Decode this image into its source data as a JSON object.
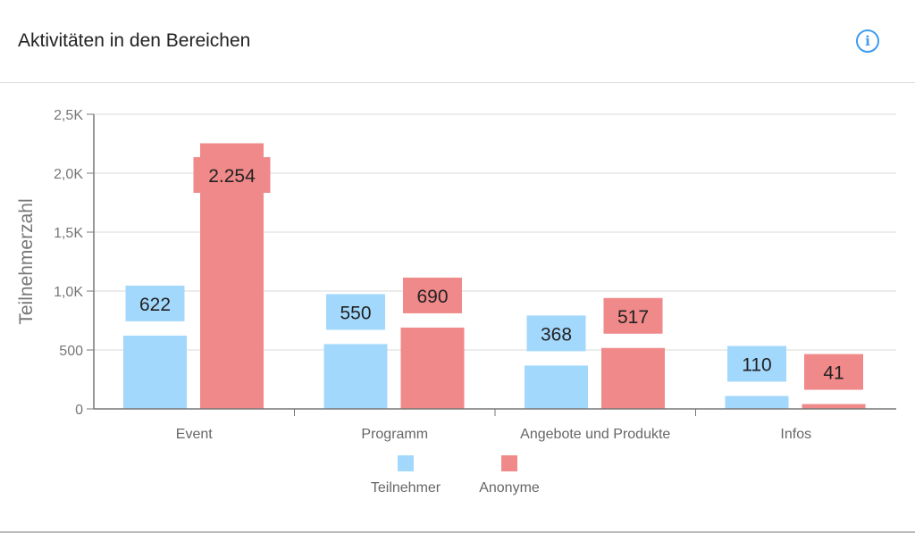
{
  "header": {
    "title": "Aktivitäten in den Bereichen",
    "info_icon": "info-icon"
  },
  "chart_data": {
    "type": "bar",
    "title": "Aktivitäten in den Bereichen",
    "xlabel": "",
    "ylabel": "Teilnehmerzahl",
    "ylim": [
      0,
      2500
    ],
    "yticks": [
      0,
      500,
      1000,
      1500,
      2000,
      2500
    ],
    "ytick_labels": [
      "0",
      "500",
      "1,0K",
      "1,5K",
      "2,0K",
      "2,5K"
    ],
    "categories": [
      "Event",
      "Programm",
      "Angebote und Produkte",
      "Infos"
    ],
    "series": [
      {
        "name": "Teilnehmer",
        "color": "#a3d8fd",
        "values": [
          622,
          550,
          368,
          110
        ],
        "labels": [
          "622",
          "550",
          "368",
          "110"
        ]
      },
      {
        "name": "Anonyme",
        "color": "#f08989",
        "values": [
          2254,
          690,
          517,
          41
        ],
        "labels": [
          "2.254",
          "690",
          "517",
          "41"
        ]
      }
    ],
    "grid": true,
    "legend": "bottom"
  }
}
